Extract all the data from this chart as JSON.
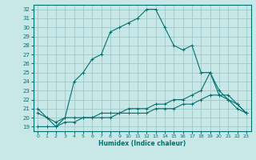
{
  "xlabel": "Humidex (Indice chaleur)",
  "background_color": "#c8e8e8",
  "grid_color": "#a0c8c8",
  "line_color": "#007070",
  "xlim": [
    -0.5,
    23.5
  ],
  "ylim": [
    18.5,
    32.5
  ],
  "yticks": [
    19,
    20,
    21,
    22,
    23,
    24,
    25,
    26,
    27,
    28,
    29,
    30,
    31,
    32
  ],
  "xticks": [
    0,
    1,
    2,
    3,
    4,
    5,
    6,
    7,
    8,
    9,
    10,
    11,
    12,
    13,
    14,
    15,
    16,
    17,
    18,
    19,
    20,
    21,
    22,
    23
  ],
  "main_x": [
    0,
    1,
    2,
    3,
    4,
    5,
    6,
    7,
    8,
    9,
    10,
    11,
    12,
    13,
    14,
    15,
    16,
    17,
    18,
    19,
    20,
    21,
    22,
    23
  ],
  "main_y": [
    21.0,
    20.0,
    19.0,
    20.0,
    24.0,
    25.0,
    26.5,
    27.0,
    29.5,
    30.0,
    30.5,
    31.0,
    32.0,
    32.0,
    30.0,
    28.0,
    27.5,
    28.0,
    25.0,
    25.0,
    22.5,
    22.0,
    21.0,
    20.5
  ],
  "line2_x": [
    0,
    1,
    2,
    3,
    4,
    5,
    6,
    7,
    8,
    9,
    10,
    11,
    12,
    13,
    14,
    15,
    16,
    17,
    18,
    19,
    20,
    21,
    22,
    23
  ],
  "line2_y": [
    19.0,
    19.0,
    19.0,
    19.5,
    19.5,
    20.0,
    20.0,
    20.0,
    20.0,
    20.5,
    20.5,
    20.5,
    20.5,
    21.0,
    21.0,
    21.0,
    21.5,
    21.5,
    22.0,
    22.5,
    22.5,
    22.5,
    21.5,
    20.5
  ],
  "line3_x": [
    0,
    1,
    2,
    3,
    4,
    5,
    6,
    7,
    8,
    9,
    10,
    11,
    12,
    13,
    14,
    15,
    16,
    17,
    18,
    19,
    20,
    21,
    22,
    23
  ],
  "line3_y": [
    20.5,
    20.0,
    19.5,
    20.0,
    20.0,
    20.0,
    20.0,
    20.5,
    20.5,
    20.5,
    21.0,
    21.0,
    21.0,
    21.5,
    21.5,
    22.0,
    22.0,
    22.5,
    23.0,
    25.0,
    23.0,
    22.0,
    21.5,
    20.5
  ]
}
